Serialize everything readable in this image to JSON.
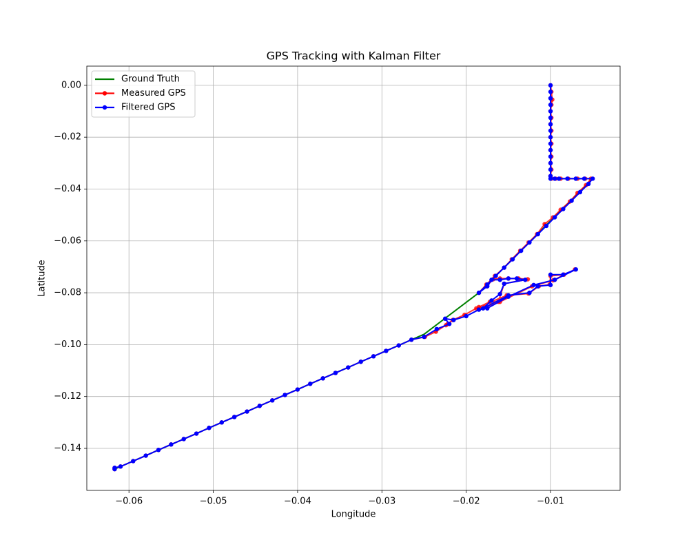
{
  "chart_data": {
    "type": "line",
    "title": "GPS Tracking with Kalman Filter",
    "x_label": "Longitude",
    "y_label": "Latitude",
    "xlim": [
      -0.065,
      -0.00175
    ],
    "ylim": [
      -0.1562,
      0.0074
    ],
    "xticks": [
      {
        "value": -0.06,
        "label": "−0.06"
      },
      {
        "value": -0.05,
        "label": "−0.05"
      },
      {
        "value": -0.04,
        "label": "−0.04"
      },
      {
        "value": -0.03,
        "label": "−0.03"
      },
      {
        "value": -0.02,
        "label": "−0.02"
      },
      {
        "value": -0.01,
        "label": "−0.01"
      }
    ],
    "yticks": [
      {
        "value": 0,
        "label": "0.00"
      },
      {
        "value": -0.02,
        "label": "−0.02"
      },
      {
        "value": -0.04,
        "label": "−0.04"
      },
      {
        "value": -0.06,
        "label": "−0.06"
      },
      {
        "value": -0.08,
        "label": "−0.08"
      },
      {
        "value": -0.1,
        "label": "−0.10"
      },
      {
        "value": -0.12,
        "label": "−0.12"
      },
      {
        "value": -0.14,
        "label": "−0.14"
      }
    ],
    "grid": true,
    "legend": "upper left",
    "series": [
      {
        "name": "Ground Truth",
        "color": "#008000",
        "marker": false,
        "x": [
          -0.01,
          -0.01,
          -0.005,
          -0.0185,
          -0.025,
          -0.0617
        ],
        "values": [
          0,
          -0.036,
          -0.036,
          -0.08,
          -0.096,
          -0.148
        ]
      },
      {
        "name": "Measured GPS",
        "color": "#ff0000",
        "marker": true,
        "x": [
          -0.01,
          -0.0099,
          -0.0098,
          -0.0099,
          -0.01,
          -0.0099,
          -0.01,
          -0.0099,
          -0.01,
          -0.0099,
          -0.01,
          -0.0099,
          -0.01,
          -0.0099,
          -0.01,
          -0.0099,
          -0.0094,
          -0.0088,
          -0.0079,
          -0.0068,
          -0.0059,
          -0.0052,
          -0.0058,
          -0.0068,
          -0.0077,
          -0.0088,
          -0.0097,
          -0.0107,
          -0.0116,
          -0.0126,
          -0.0136,
          -0.0146,
          -0.0155,
          -0.0166,
          -0.0176,
          -0.0185,
          -0.0176,
          -0.0168,
          -0.016,
          -0.015,
          -0.0138,
          -0.0127,
          -0.0155,
          -0.0162,
          -0.0172,
          -0.0185,
          -0.0152,
          -0.0126,
          -0.0114,
          -0.0101,
          -0.01,
          -0.0084,
          -0.0071,
          -0.0097,
          -0.0122,
          -0.016,
          -0.0178,
          -0.0188,
          -0.0202,
          -0.0216,
          -0.0224,
          -0.0222,
          -0.0236,
          -0.0249,
          -0.0265,
          -0.028,
          -0.0295,
          -0.031,
          -0.0325,
          -0.034,
          -0.0355,
          -0.037,
          -0.0385,
          -0.04,
          -0.0415,
          -0.043,
          -0.0445,
          -0.046,
          -0.0475,
          -0.049,
          -0.0505,
          -0.052,
          -0.0535,
          -0.055,
          -0.0565,
          -0.058,
          -0.0595,
          -0.061,
          -0.0617,
          -0.0617
        ],
        "values": [
          0,
          -0.0025,
          -0.0055,
          -0.0075,
          -0.01,
          -0.0125,
          -0.015,
          -0.0175,
          -0.02,
          -0.0225,
          -0.025,
          -0.0275,
          -0.03,
          -0.0325,
          -0.035,
          -0.036,
          -0.036,
          -0.036,
          -0.036,
          -0.036,
          -0.036,
          -0.036,
          -0.0385,
          -0.0415,
          -0.0448,
          -0.048,
          -0.0509,
          -0.0535,
          -0.0574,
          -0.0606,
          -0.0638,
          -0.0671,
          -0.0703,
          -0.0735,
          -0.0768,
          -0.08,
          -0.0775,
          -0.0748,
          -0.0745,
          -0.0745,
          -0.0745,
          -0.0748,
          -0.0765,
          -0.0835,
          -0.0835,
          -0.0855,
          -0.081,
          -0.0803,
          -0.0775,
          -0.0768,
          -0.0735,
          -0.073,
          -0.071,
          -0.0752,
          -0.0775,
          -0.0835,
          -0.0855,
          -0.086,
          -0.0885,
          -0.0905,
          -0.0925,
          -0.092,
          -0.095,
          -0.097,
          -0.0981,
          -0.1003,
          -0.1024,
          -0.1045,
          -0.1066,
          -0.1088,
          -0.1109,
          -0.113,
          -0.1151,
          -0.1173,
          -0.1194,
          -0.1215,
          -0.1236,
          -0.1258,
          -0.1279,
          -0.13,
          -0.1321,
          -0.1343,
          -0.1364,
          -0.1385,
          -0.1406,
          -0.1428,
          -0.1449,
          -0.147,
          -0.1475,
          -0.148
        ]
      },
      {
        "name": "Filtered GPS",
        "color": "#0000ff",
        "marker": true,
        "x": [
          -0.01,
          -0.01,
          -0.01,
          -0.01,
          -0.01,
          -0.01,
          -0.01,
          -0.01,
          -0.01,
          -0.01,
          -0.01,
          -0.01,
          -0.01,
          -0.01,
          -0.01,
          -0.01,
          -0.0095,
          -0.009,
          -0.008,
          -0.007,
          -0.006,
          -0.005,
          -0.0055,
          -0.0065,
          -0.0075,
          -0.0085,
          -0.0095,
          -0.0105,
          -0.0115,
          -0.0125,
          -0.0135,
          -0.0145,
          -0.0155,
          -0.0165,
          -0.0175,
          -0.0185,
          -0.0175,
          -0.017,
          -0.016,
          -0.015,
          -0.014,
          -0.013,
          -0.0155,
          -0.016,
          -0.017,
          -0.018,
          -0.015,
          -0.0125,
          -0.0115,
          -0.01,
          -0.01,
          -0.0085,
          -0.007,
          -0.0095,
          -0.012,
          -0.015,
          -0.0175,
          -0.0185,
          -0.02,
          -0.0215,
          -0.0225,
          -0.022,
          -0.0235,
          -0.025,
          -0.0265,
          -0.028,
          -0.0295,
          -0.031,
          -0.0325,
          -0.034,
          -0.0355,
          -0.037,
          -0.0385,
          -0.04,
          -0.0415,
          -0.043,
          -0.0445,
          -0.046,
          -0.0475,
          -0.049,
          -0.0505,
          -0.052,
          -0.0535,
          -0.055,
          -0.0565,
          -0.058,
          -0.0595,
          -0.061,
          -0.0617,
          -0.0617
        ],
        "values": [
          0,
          -0.0025,
          -0.005,
          -0.0075,
          -0.01,
          -0.0125,
          -0.015,
          -0.0175,
          -0.02,
          -0.0225,
          -0.025,
          -0.0275,
          -0.03,
          -0.0325,
          -0.035,
          -0.036,
          -0.036,
          -0.036,
          -0.036,
          -0.036,
          -0.036,
          -0.036,
          -0.038,
          -0.0412,
          -0.0445,
          -0.0477,
          -0.0509,
          -0.0542,
          -0.0574,
          -0.0606,
          -0.0638,
          -0.0671,
          -0.0703,
          -0.0735,
          -0.0768,
          -0.08,
          -0.0775,
          -0.075,
          -0.075,
          -0.0745,
          -0.0745,
          -0.075,
          -0.0765,
          -0.0805,
          -0.083,
          -0.086,
          -0.081,
          -0.08,
          -0.0775,
          -0.077,
          -0.073,
          -0.073,
          -0.071,
          -0.075,
          -0.077,
          -0.0815,
          -0.086,
          -0.0865,
          -0.089,
          -0.0905,
          -0.09,
          -0.092,
          -0.094,
          -0.097,
          -0.0981,
          -0.1003,
          -0.1024,
          -0.1045,
          -0.1066,
          -0.1088,
          -0.1109,
          -0.113,
          -0.1151,
          -0.1173,
          -0.1194,
          -0.1215,
          -0.1236,
          -0.1258,
          -0.1279,
          -0.13,
          -0.1321,
          -0.1343,
          -0.1364,
          -0.1385,
          -0.1406,
          -0.1428,
          -0.1449,
          -0.147,
          -0.1475,
          -0.148
        ]
      }
    ]
  }
}
